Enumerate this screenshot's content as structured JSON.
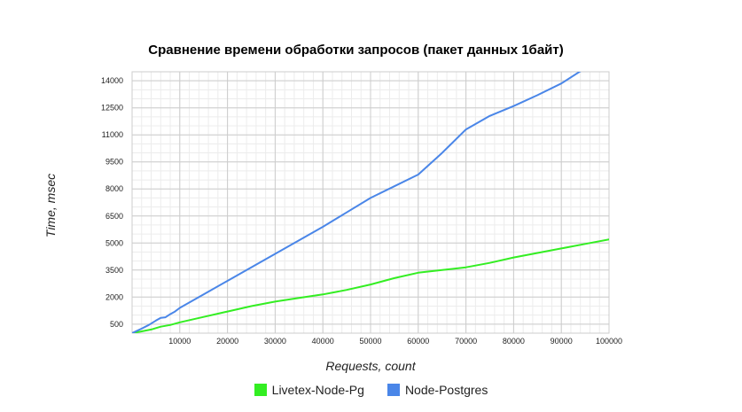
{
  "chart_data": {
    "type": "line",
    "title": "Сравнение времени обработки запросов (пакет данных 1байт)",
    "xlabel": "Requests, count",
    "ylabel": "Time, msec",
    "xlim": [
      0,
      100000
    ],
    "ylim": [
      0,
      14500
    ],
    "x_ticks": [
      10000,
      20000,
      30000,
      40000,
      50000,
      60000,
      70000,
      80000,
      90000,
      100000
    ],
    "y_ticks": [
      500,
      2000,
      3500,
      5000,
      6500,
      8000,
      9500,
      11000,
      12500,
      14000
    ],
    "grid": true,
    "legend_position": "bottom",
    "series": [
      {
        "name": "Livetex-Node-Pg",
        "color": "#33ee22",
        "points": [
          [
            0,
            0
          ],
          [
            2000,
            100
          ],
          [
            4000,
            200
          ],
          [
            6000,
            360
          ],
          [
            8000,
            450
          ],
          [
            10000,
            600
          ],
          [
            15000,
            900
          ],
          [
            20000,
            1200
          ],
          [
            25000,
            1500
          ],
          [
            30000,
            1750
          ],
          [
            35000,
            1950
          ],
          [
            40000,
            2150
          ],
          [
            45000,
            2400
          ],
          [
            50000,
            2700
          ],
          [
            55000,
            3050
          ],
          [
            60000,
            3350
          ],
          [
            65000,
            3500
          ],
          [
            70000,
            3650
          ],
          [
            75000,
            3900
          ],
          [
            80000,
            4200
          ],
          [
            85000,
            4450
          ],
          [
            90000,
            4700
          ],
          [
            95000,
            4950
          ],
          [
            100000,
            5200
          ]
        ]
      },
      {
        "name": "Node-Postgres",
        "color": "#4a86e8",
        "points": [
          [
            0,
            0
          ],
          [
            2000,
            250
          ],
          [
            3500,
            450
          ],
          [
            5000,
            700
          ],
          [
            6000,
            850
          ],
          [
            7000,
            880
          ],
          [
            8000,
            1050
          ],
          [
            9000,
            1200
          ],
          [
            10000,
            1400
          ],
          [
            15000,
            2150
          ],
          [
            20000,
            2900
          ],
          [
            25000,
            3650
          ],
          [
            30000,
            4400
          ],
          [
            35000,
            5150
          ],
          [
            40000,
            5900
          ],
          [
            45000,
            6700
          ],
          [
            50000,
            7500
          ],
          [
            55000,
            8150
          ],
          [
            60000,
            8800
          ],
          [
            65000,
            10000
          ],
          [
            70000,
            11300
          ],
          [
            75000,
            12050
          ],
          [
            80000,
            12600
          ],
          [
            85000,
            13200
          ],
          [
            90000,
            13850
          ],
          [
            95000,
            14700
          ],
          [
            100000,
            15600
          ]
        ]
      }
    ]
  }
}
